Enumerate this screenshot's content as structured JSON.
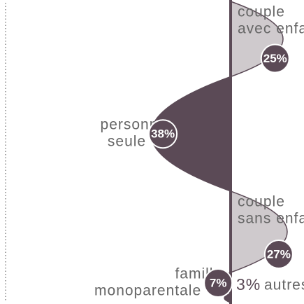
{
  "chart_data": {
    "type": "spine",
    "categories": [
      [
        "couple",
        "avec enfant(s)"
      ],
      [
        "personne",
        "seule"
      ],
      [
        "couple",
        "sans enfant"
      ],
      [
        "famille",
        "monoparentale"
      ],
      [
        "autres"
      ]
    ],
    "values": [
      25,
      38,
      27,
      7,
      3
    ],
    "value_labels": [
      "25%",
      "38%",
      "27%",
      "7%",
      "3%"
    ],
    "colors": [
      "#cfcacd",
      "#5b4a56",
      "#cfcacd",
      "#5b4a56",
      "#5b4a56"
    ]
  }
}
